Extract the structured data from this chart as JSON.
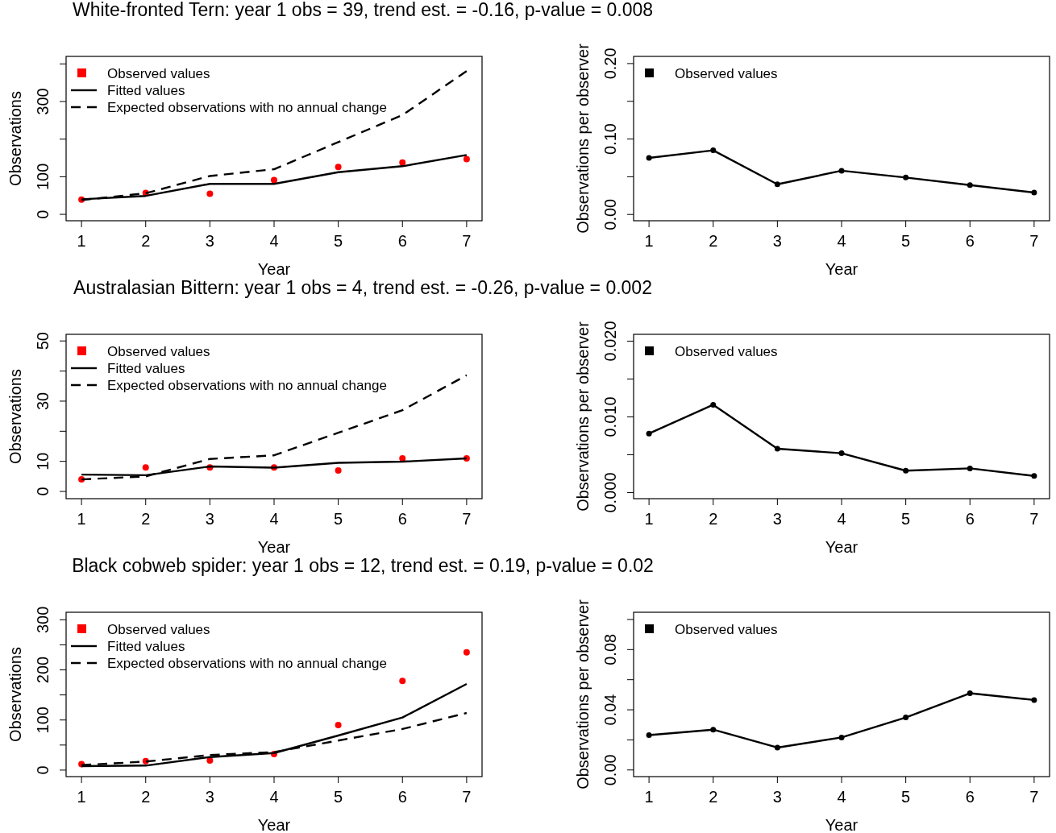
{
  "chart_data": [
    {
      "type": "line",
      "title": "White-fronted Tern: year 1 obs = 39, trend est. = -0.16, p-value = 0.008",
      "xlabel": "Year",
      "ylabel": "Observations",
      "x": [
        1,
        2,
        3,
        4,
        5,
        6,
        7
      ],
      "xlim": [
        0.76,
        7.24
      ],
      "xticks": [
        1,
        2,
        3,
        4,
        5,
        6,
        7
      ],
      "ylim": [
        -17,
        420
      ],
      "yticks": [
        0,
        100,
        {
          "value": 200,
          "label": null
        },
        300,
        {
          "value": 400,
          "label": null
        }
      ],
      "legend": "top left",
      "grid": false,
      "series": [
        {
          "name": "Observed values",
          "type": "scatter",
          "color": "#ff0000",
          "marker": "circle",
          "values": [
            39,
            57,
            55,
            91,
            126,
            138,
            147
          ]
        },
        {
          "name": "Fitted values",
          "type": "line",
          "color": "#000000",
          "line_style": "solid",
          "values": [
            40,
            49,
            81,
            81,
            112,
            128,
            158
          ]
        },
        {
          "name": "Expected observations with no annual change",
          "type": "line",
          "color": "#000000",
          "line_style": "dashed",
          "values": [
            38,
            56,
            102,
            120,
            192,
            264,
            381
          ]
        }
      ]
    },
    {
      "type": "line",
      "xlabel": "Year",
      "ylabel": "Observations per observer",
      "x": [
        1,
        2,
        3,
        4,
        5,
        6,
        7
      ],
      "xlim": [
        0.76,
        7.24
      ],
      "xticks": [
        1,
        2,
        3,
        4,
        5,
        6,
        7
      ],
      "ylim": [
        -0.0083,
        0.2095
      ],
      "yticks": [
        {
          "value": 0,
          "label": "0.00"
        },
        {
          "value": 0.05,
          "label": null
        },
        {
          "value": 0.1,
          "label": "0.10"
        },
        {
          "value": 0.15,
          "label": null
        },
        {
          "value": 0.2,
          "label": "0.20"
        }
      ],
      "legend": "top left",
      "grid": false,
      "series": [
        {
          "name": "Observed values",
          "type": "line",
          "color": "#000000",
          "marker": "circle",
          "line_style": "solid",
          "values": [
            0.075,
            0.085,
            0.04,
            0.058,
            0.049,
            0.039,
            0.029
          ]
        }
      ]
    },
    {
      "type": "line",
      "title": "Australasian Bittern: year 1 obs = 4, trend est. = -0.26, p-value = 0.002",
      "xlabel": "Year",
      "ylabel": "Observations",
      "x": [
        1,
        2,
        3,
        4,
        5,
        6,
        7
      ],
      "xlim": [
        0.76,
        7.24
      ],
      "xticks": [
        1,
        2,
        3,
        4,
        5,
        6,
        7
      ],
      "ylim": [
        -2.4,
        52.2
      ],
      "yticks": [
        0,
        10,
        {
          "value": 20,
          "label": null
        },
        30,
        {
          "value": 40,
          "label": null
        },
        50
      ],
      "legend": "top left",
      "grid": false,
      "series": [
        {
          "name": "Observed values",
          "type": "scatter",
          "color": "#ff0000",
          "marker": "circle",
          "values": [
            4,
            8,
            8,
            8,
            7,
            11,
            11
          ]
        },
        {
          "name": "Fitted values",
          "type": "line",
          "color": "#000000",
          "line_style": "solid",
          "values": [
            5.6,
            5.4,
            8.3,
            7.9,
            9.5,
            9.9,
            11
          ]
        },
        {
          "name": "Expected observations with no annual change",
          "type": "line",
          "color": "#000000",
          "line_style": "dashed",
          "values": [
            4,
            5,
            10.8,
            12,
            19.5,
            27,
            38.6
          ]
        }
      ]
    },
    {
      "type": "line",
      "xlabel": "Year",
      "ylabel": "Observations per observer",
      "x": [
        1,
        2,
        3,
        4,
        5,
        6,
        7
      ],
      "xlim": [
        0.76,
        7.24
      ],
      "xticks": [
        1,
        2,
        3,
        4,
        5,
        6,
        7
      ],
      "ylim": [
        -0.0008,
        0.0209
      ],
      "yticks": [
        {
          "value": 0,
          "label": "0.000"
        },
        {
          "value": 0.005,
          "label": null
        },
        {
          "value": 0.01,
          "label": "0.010"
        },
        {
          "value": 0.015,
          "label": null
        },
        {
          "value": 0.02,
          "label": "0.020"
        }
      ],
      "legend": "top left",
      "grid": false,
      "series": [
        {
          "name": "Observed values",
          "type": "line",
          "color": "#000000",
          "marker": "circle",
          "line_style": "solid",
          "values": [
            0.0078,
            0.0116,
            0.0058,
            0.0052,
            0.0029,
            0.0032,
            0.0022
          ]
        }
      ]
    },
    {
      "type": "line",
      "title": "Black cobweb spider: year 1 obs = 12, trend est. = 0.19, p-value = 0.02",
      "xlabel": "Year",
      "ylabel": "Observations",
      "x": [
        1,
        2,
        3,
        4,
        5,
        6,
        7
      ],
      "xlim": [
        0.76,
        7.24
      ],
      "xticks": [
        1,
        2,
        3,
        4,
        5,
        6,
        7
      ],
      "ylim": [
        -13,
        315
      ],
      "yticks": [
        0,
        {
          "value": 50,
          "label": null
        },
        100,
        {
          "value": 150,
          "label": null
        },
        200,
        {
          "value": 250,
          "label": null
        },
        300
      ],
      "legend": "top left",
      "grid": false,
      "series": [
        {
          "name": "Observed values",
          "type": "scatter",
          "color": "#ff0000",
          "marker": "circle",
          "values": [
            12,
            18,
            19,
            32,
            90,
            178,
            235
          ]
        },
        {
          "name": "Fitted values",
          "type": "line",
          "color": "#000000",
          "line_style": "solid",
          "values": [
            8,
            9,
            26,
            34,
            69,
            105,
            172
          ]
        },
        {
          "name": "Expected observations with no annual change",
          "type": "line",
          "color": "#000000",
          "line_style": "dashed",
          "values": [
            10,
            17,
            30,
            36,
            59,
            82,
            114
          ]
        }
      ]
    },
    {
      "type": "line",
      "xlabel": "Year",
      "ylabel": "Observations per observer",
      "x": [
        1,
        2,
        3,
        4,
        5,
        6,
        7
      ],
      "xlim": [
        0.76,
        7.24
      ],
      "xticks": [
        1,
        2,
        3,
        4,
        5,
        6,
        7
      ],
      "ylim": [
        -0.0044,
        0.1048
      ],
      "yticks": [
        {
          "value": 0,
          "label": "0.00"
        },
        {
          "value": 0.02,
          "label": null
        },
        0.04,
        {
          "value": 0.06,
          "label": null
        },
        0.08,
        {
          "value": 0.1,
          "label": null
        }
      ],
      "legend": "top left",
      "grid": false,
      "series": [
        {
          "name": "Observed values",
          "type": "line",
          "color": "#000000",
          "marker": "circle",
          "line_style": "solid",
          "values": [
            0.0232,
            0.0268,
            0.0149,
            0.0216,
            0.0349,
            0.051,
            0.0465
          ]
        }
      ]
    }
  ]
}
